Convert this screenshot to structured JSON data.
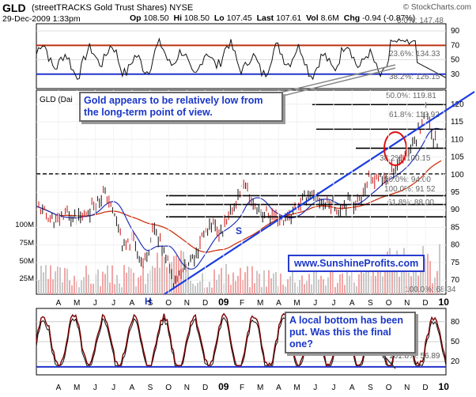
{
  "chart_data": {
    "type": "line",
    "title": "GLD (streetTRACKS Gold Trust Shares) NYSE",
    "ticker": "GLD",
    "name": "(streetTRACKS Gold Trust Shares)",
    "exchange": "NYSE",
    "date": "29-Dec-2009 1:33pm",
    "source": "© StockCharts.com",
    "quote": {
      "op": "108.50",
      "hi": "108.50",
      "lo": "107.45",
      "last": "107.61",
      "vol": "8.6M",
      "chg": "-0.94 (-0.87%)"
    },
    "quote_labels": {
      "op": "Op",
      "hi": "Hi",
      "lo": "Lo",
      "last": "Last",
      "vol": "Vol",
      "chg": "Chg"
    },
    "price_axis": {
      "range": [
        66,
        124
      ],
      "ticks": [
        70,
        75,
        80,
        85,
        90,
        95,
        100,
        105,
        110,
        115,
        120
      ]
    },
    "volume_axis": {
      "ticks": [
        "100M",
        "75M",
        "50M",
        "25M"
      ]
    },
    "upper_axis": {
      "ticks": [
        90,
        70,
        50,
        30
      ]
    },
    "lower_axis": {
      "ticks": [
        80,
        50,
        20
      ]
    },
    "months": [
      "A",
      "M",
      "J",
      "J",
      "A",
      "S",
      "O",
      "N",
      "D",
      "09",
      "F",
      "M",
      "A",
      "M",
      "J",
      "J",
      "A",
      "S",
      "O",
      "N",
      "D",
      "10"
    ],
    "fib_levels": [
      {
        "label": "0.0%: 147.48",
        "value": 147.48
      },
      {
        "label": "23.6%: 134.33",
        "value": 134.33
      },
      {
        "label": "38.2%: 126.15",
        "value": 126.15
      },
      {
        "label": "50.0%: 119.81",
        "value": 119.81
      },
      {
        "label": "61.8%: 112.92",
        "value": 112.92
      },
      {
        "label": "38.2%: 100.15",
        "value": 100.15
      },
      {
        "label": "50.0%: 94.00",
        "value": 94.0
      },
      {
        "label": "100.0%: 91.52",
        "value": 91.52
      },
      {
        "label": "61.8%: 88.00",
        "value": 88.0
      },
      {
        "label": "100.0%: 68.34",
        "value": 68.34
      }
    ],
    "price_series": [
      [
        "2008-04-01",
        91
      ],
      [
        "2008-04-15",
        89
      ],
      [
        "2008-05-01",
        86
      ],
      [
        "2008-05-15",
        89
      ],
      [
        "2008-06-01",
        87.5
      ],
      [
        "2008-06-15",
        88
      ],
      [
        "2008-07-01",
        92
      ],
      [
        "2008-07-15",
        95
      ],
      [
        "2008-08-01",
        89
      ],
      [
        "2008-08-15",
        79
      ],
      [
        "2008-09-01",
        81
      ],
      [
        "2008-09-15",
        74
      ],
      [
        "2008-10-01",
        85
      ],
      [
        "2008-10-15",
        79
      ],
      [
        "2008-11-01",
        70.5
      ],
      [
        "2008-11-15",
        73
      ],
      [
        "2008-12-01",
        76
      ],
      [
        "2008-12-15",
        82
      ],
      [
        "2009-01-01",
        86
      ],
      [
        "2009-01-15",
        83
      ],
      [
        "2009-02-01",
        90
      ],
      [
        "2009-02-20",
        98
      ],
      [
        "2009-03-01",
        92
      ],
      [
        "2009-03-15",
        90
      ],
      [
        "2009-04-01",
        88
      ],
      [
        "2009-04-15",
        87
      ],
      [
        "2009-05-01",
        88
      ],
      [
        "2009-05-15",
        91
      ],
      [
        "2009-06-01",
        95
      ],
      [
        "2009-06-15",
        92
      ],
      [
        "2009-07-01",
        92
      ],
      [
        "2009-07-15",
        90
      ],
      [
        "2009-08-01",
        93
      ],
      [
        "2009-08-15",
        92
      ],
      [
        "2009-09-01",
        98
      ],
      [
        "2009-09-15",
        99
      ],
      [
        "2009-10-01",
        99
      ],
      [
        "2009-10-15",
        103
      ],
      [
        "2009-11-01",
        106
      ],
      [
        "2009-11-15",
        111
      ],
      [
        "2009-12-01",
        119
      ],
      [
        "2009-12-10",
        111
      ],
      [
        "2009-12-20",
        108
      ],
      [
        "2009-12-29",
        107.6
      ]
    ],
    "callouts": [
      "Gold appears to be relatively low from the long-term point of view.",
      "A local bottom has been put. Was this the final one?"
    ],
    "pattern_labels": [
      "H",
      "S"
    ],
    "watermark": "www.SunshineProfits.com",
    "indicator_labels": {
      "price_panel": "GLD (Dai",
      "lower_fib": "161.8%: 56.89"
    },
    "colors": {
      "price_up": "#111111",
      "price_down": "#cc1111",
      "ma_short": "#2233bb",
      "ma_long": "#cc3311",
      "trendline": "#1a3ce0",
      "fib_line": "#000000",
      "osc_line": "#7a0000"
    }
  }
}
